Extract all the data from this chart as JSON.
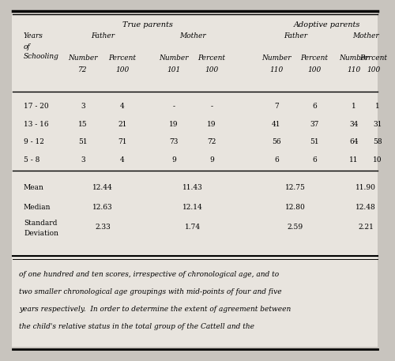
{
  "bg_color": "#c8c4be",
  "table_bg": "#e0dbd5",
  "footer_bg": "#dedad4",
  "true_parents": "True parents",
  "adoptive_parents": "Adoptive parents",
  "col_labels": [
    "Years\nof\nSchooling",
    "Number\n72",
    "Percent\n100",
    "Number\n101",
    "Percent\n100",
    "Number\n110",
    "Percent\n100",
    "Number\n110",
    "Percent\n100"
  ],
  "row_labels": [
    "17 - 20",
    "13 - 16",
    "9 - 12",
    "5 - 8"
  ],
  "data_rows": [
    [
      "3",
      "4",
      "-",
      "-",
      "7",
      "6",
      "1",
      "1"
    ],
    [
      "15",
      "21",
      "19",
      "19",
      "41",
      "37",
      "34",
      "31"
    ],
    [
      "51",
      "71",
      "73",
      "72",
      "56",
      "51",
      "64",
      "58"
    ],
    [
      "3",
      "4",
      "9",
      "9",
      "6",
      "6",
      "11",
      "10"
    ]
  ],
  "stat_labels": [
    "Mean",
    "Median",
    "Standard\nDeviation"
  ],
  "stat_values": [
    [
      "12.44",
      "11.43",
      "12.75",
      "11.90"
    ],
    [
      "12.63",
      "12.14",
      "12.80",
      "12.48"
    ],
    [
      "2.33",
      "1.74",
      "2.59",
      "2.21"
    ]
  ],
  "footer_lines": [
    "of one hundred and ten scores, irrespective of chronological age, and to",
    "two smaller chronological age groupings with mid-points of four and five",
    "years respectively.  In order to determine the extent of agreement between",
    "the child's relative status in the total group of the Cattell and the"
  ],
  "font_size": 6.5,
  "font_family": "DejaVu Serif"
}
